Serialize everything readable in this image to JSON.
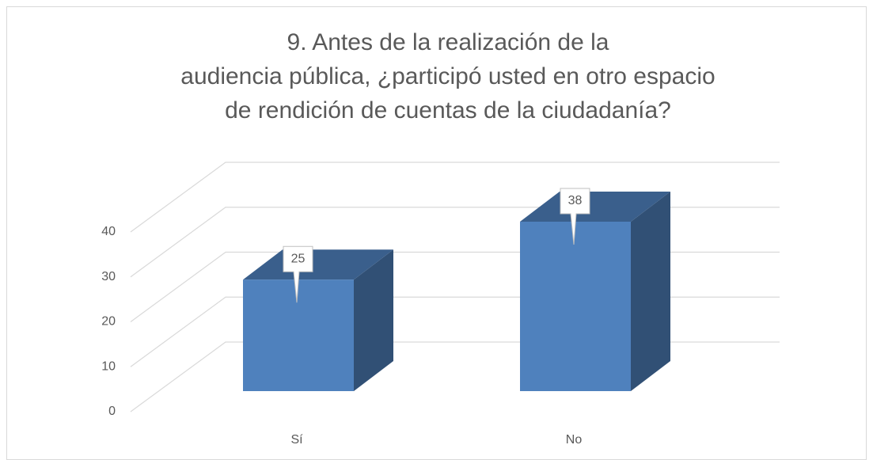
{
  "chart_data": {
    "type": "bar3d",
    "title": "9. Antes de la realización de la audiencia pública, ¿participó usted en otro espacio de rendición de cuentas de la ciudadanía?",
    "categories": [
      "Sí",
      "No"
    ],
    "values": [
      25,
      38
    ],
    "color": "#4f81bd",
    "ylim": [
      0,
      40
    ],
    "yticks": [
      0,
      10,
      20,
      30,
      40
    ],
    "grid": true,
    "data_labels": true
  }
}
